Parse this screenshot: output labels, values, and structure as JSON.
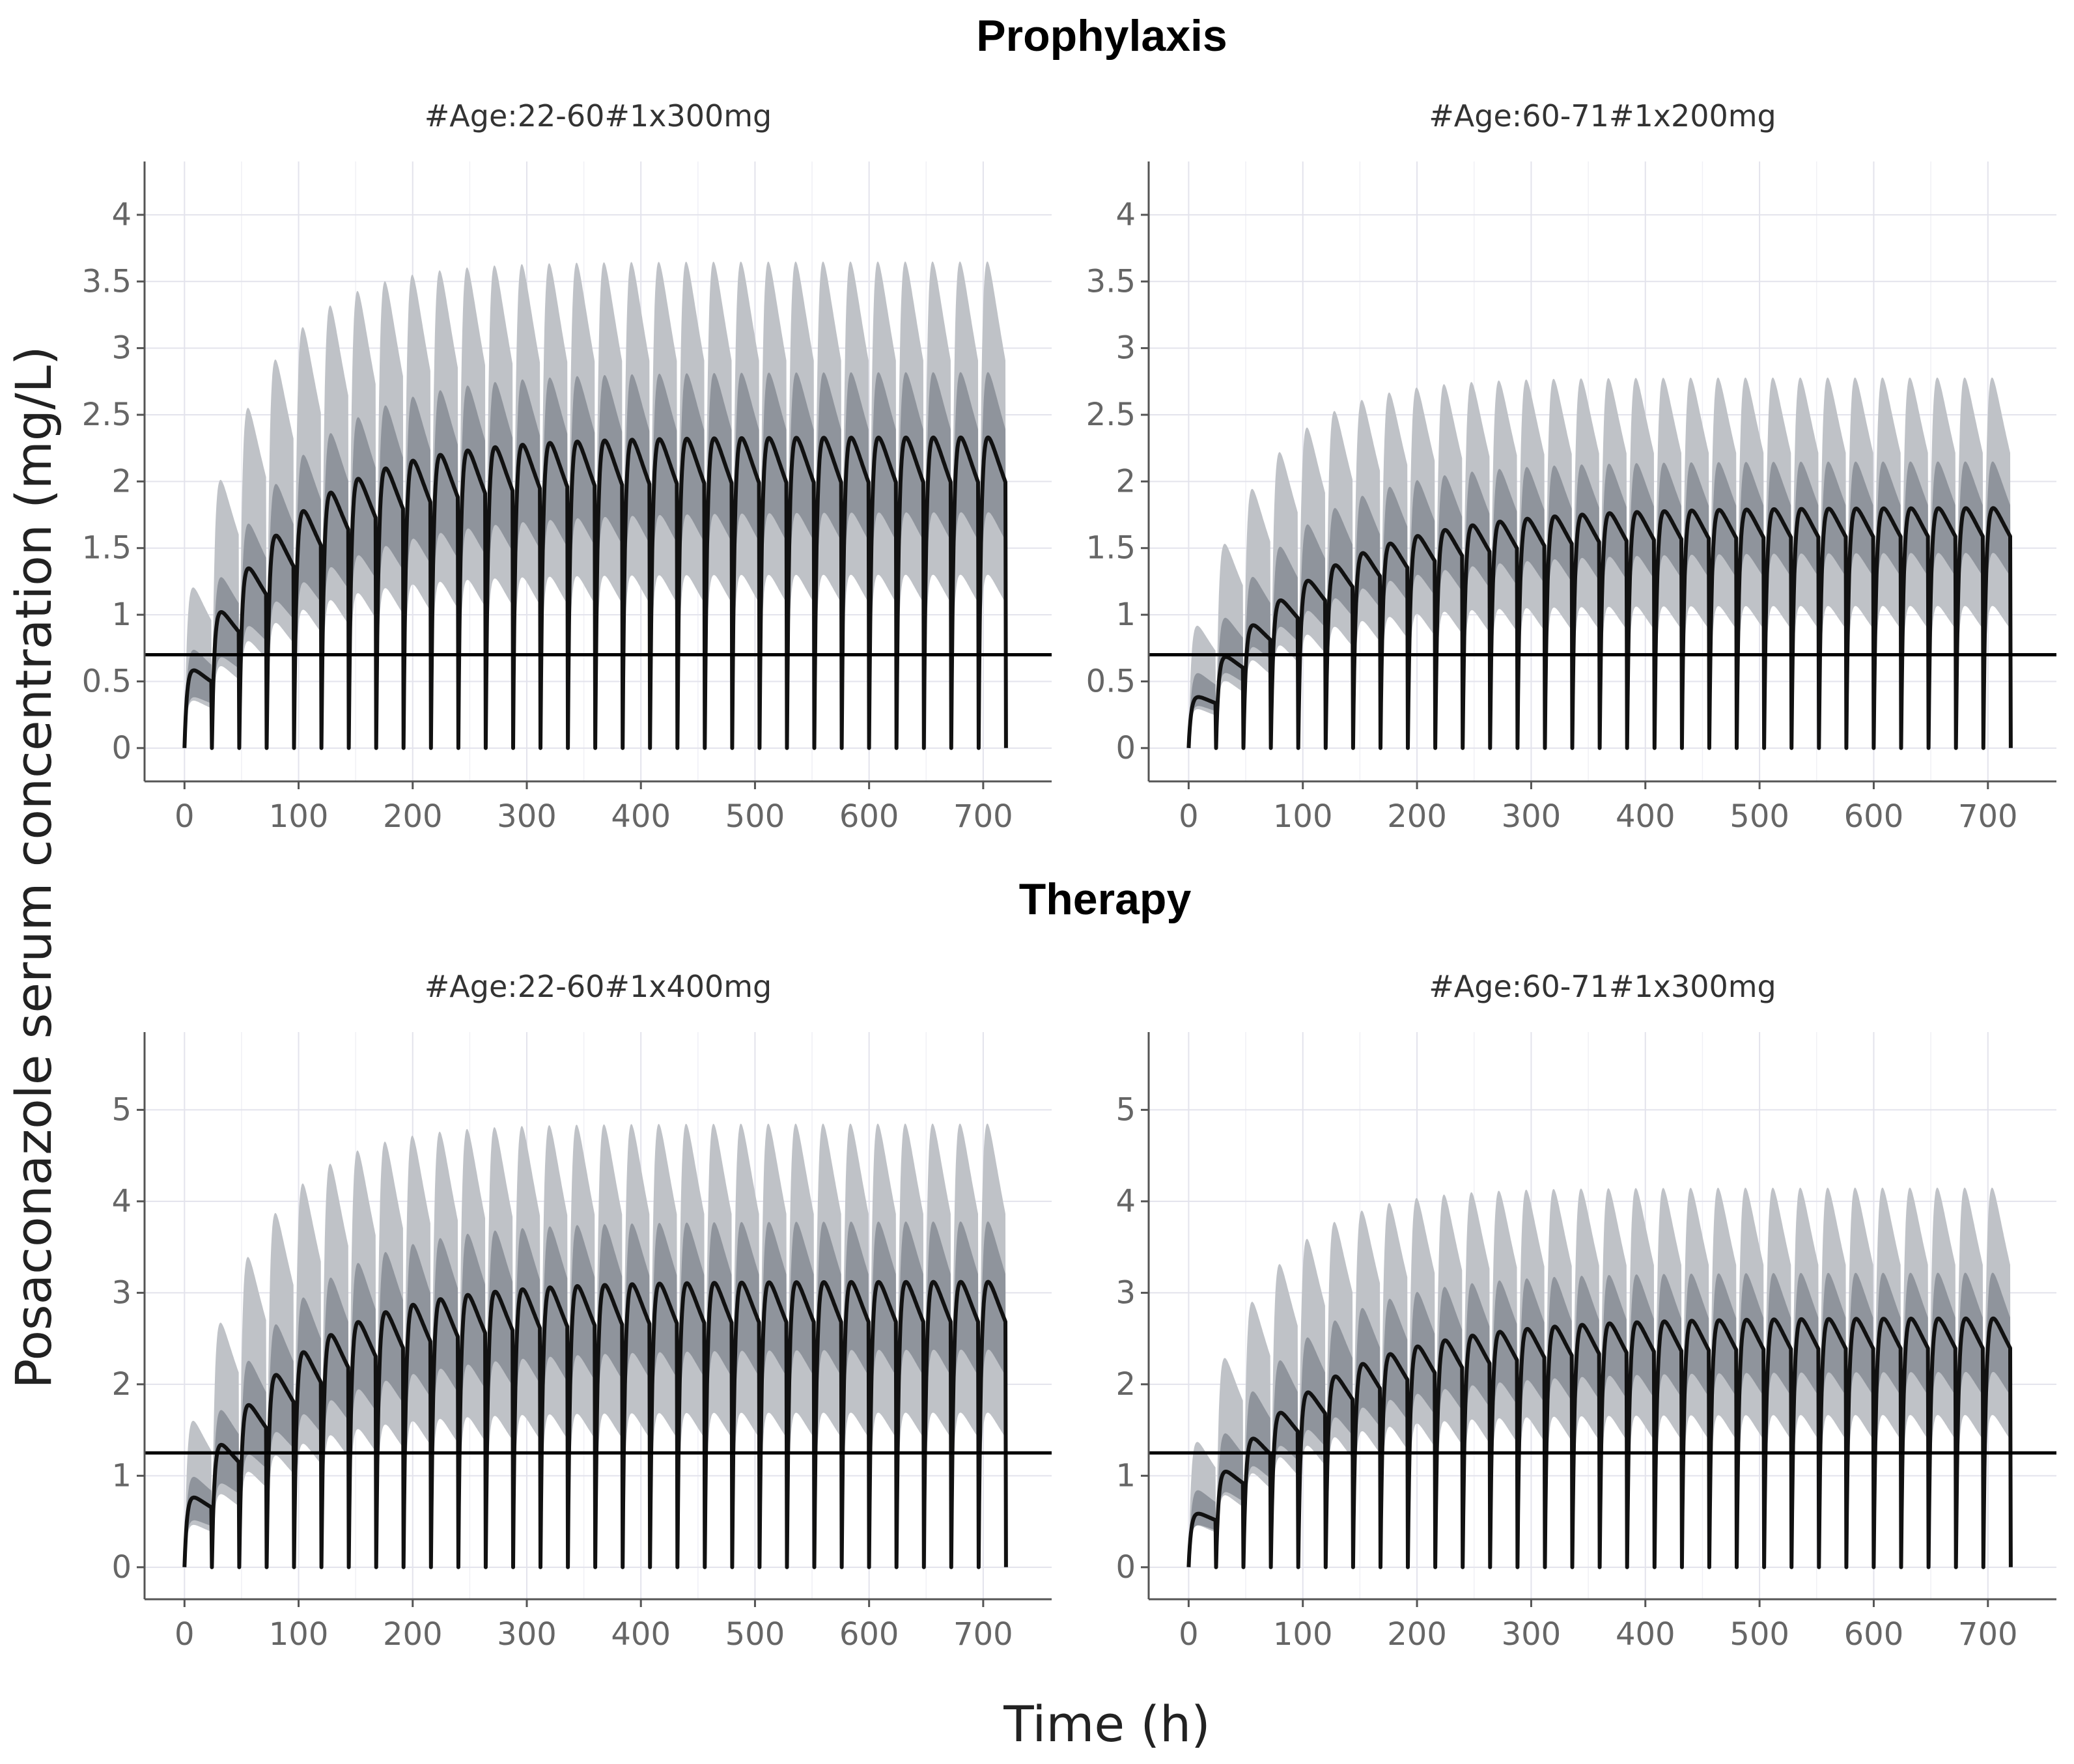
{
  "figure": {
    "ylabel": "Posaconazole serum concentration (mg/L)",
    "xlabel": "Time (h)",
    "sections": [
      {
        "title": "Prophylaxis"
      },
      {
        "title": "Therapy"
      }
    ],
    "colors": {
      "outer_band": "#bfc2c7",
      "inner_band": "#8f949c",
      "median_line": "#111111",
      "threshold_line": "#000000",
      "grid": "#e3e3ec",
      "tick_text": "#666666"
    }
  },
  "chart_data": [
    {
      "type": "area",
      "section": "Prophylaxis",
      "title": "#Age:22-60#1x300mg",
      "dose_interval_h": 24,
      "x_range": [
        0,
        720
      ],
      "xlim": [
        -35,
        760
      ],
      "ylim": [
        -0.25,
        4.4
      ],
      "xticks": [
        0,
        100,
        200,
        300,
        400,
        500,
        600,
        700
      ],
      "yticks": [
        0,
        0.5,
        1,
        1.5,
        2,
        2.5,
        3,
        3.5,
        4
      ],
      "ytick_labels": [
        "0",
        "0.5",
        "1",
        "1.5",
        "2",
        "2.5",
        "3",
        "3.5",
        "4"
      ],
      "threshold": 0.7,
      "median": {
        "trough_ss": 1.84,
        "peak_ss": 2.33
      },
      "inner_band": {
        "lower_trough_ss": 1.45,
        "upper_peak_ss": 2.82
      },
      "outer_band": {
        "lower_trough_ss": 1.0,
        "upper_peak_ss": 3.65
      }
    },
    {
      "type": "area",
      "section": "Prophylaxis",
      "title": "#Age:60-71#1x200mg",
      "dose_interval_h": 24,
      "x_range": [
        0,
        720
      ],
      "xlim": [
        -35,
        760
      ],
      "ylim": [
        -0.25,
        4.4
      ],
      "xticks": [
        0,
        100,
        200,
        300,
        400,
        500,
        600,
        700
      ],
      "yticks": [
        0,
        0.5,
        1,
        1.5,
        2,
        2.5,
        3,
        3.5,
        4
      ],
      "ytick_labels": [
        "0",
        "0.5",
        "1",
        "1.5",
        "2",
        "2.5",
        "3",
        "3.5",
        "4"
      ],
      "threshold": 0.7,
      "median": {
        "trough_ss": 1.48,
        "peak_ss": 1.8
      },
      "inner_band": {
        "lower_trough_ss": 1.2,
        "upper_peak_ss": 2.15
      },
      "outer_band": {
        "lower_trough_ss": 0.82,
        "upper_peak_ss": 2.78
      }
    },
    {
      "type": "area",
      "section": "Therapy",
      "title": "#Age:22-60#1x400mg",
      "dose_interval_h": 24,
      "x_range": [
        0,
        720
      ],
      "xlim": [
        -35,
        760
      ],
      "ylim": [
        -0.35,
        5.85
      ],
      "xticks": [
        0,
        100,
        200,
        300,
        400,
        500,
        600,
        700
      ],
      "yticks": [
        0,
        1,
        2,
        3,
        4,
        5
      ],
      "ytick_labels": [
        "0",
        "1",
        "2",
        "3",
        "4",
        "5"
      ],
      "threshold": 1.25,
      "median": {
        "trough_ss": 2.48,
        "peak_ss": 3.12
      },
      "inner_band": {
        "lower_trough_ss": 1.95,
        "upper_peak_ss": 3.78
      },
      "outer_band": {
        "lower_trough_ss": 1.3,
        "upper_peak_ss": 4.85
      }
    },
    {
      "type": "area",
      "section": "Therapy",
      "title": "#Age:60-71#1x300mg",
      "dose_interval_h": 24,
      "x_range": [
        0,
        720
      ],
      "xlim": [
        -35,
        760
      ],
      "ylim": [
        -0.35,
        5.85
      ],
      "xticks": [
        0,
        100,
        200,
        300,
        400,
        500,
        600,
        700
      ],
      "yticks": [
        0,
        1,
        2,
        3,
        4,
        5
      ],
      "ytick_labels": [
        "0",
        "1",
        "2",
        "3",
        "4",
        "5"
      ],
      "threshold": 1.25,
      "median": {
        "trough_ss": 2.23,
        "peak_ss": 2.72
      },
      "inner_band": {
        "lower_trough_ss": 1.75,
        "upper_peak_ss": 3.22
      },
      "outer_band": {
        "lower_trough_ss": 1.28,
        "upper_peak_ss": 4.15
      }
    }
  ]
}
